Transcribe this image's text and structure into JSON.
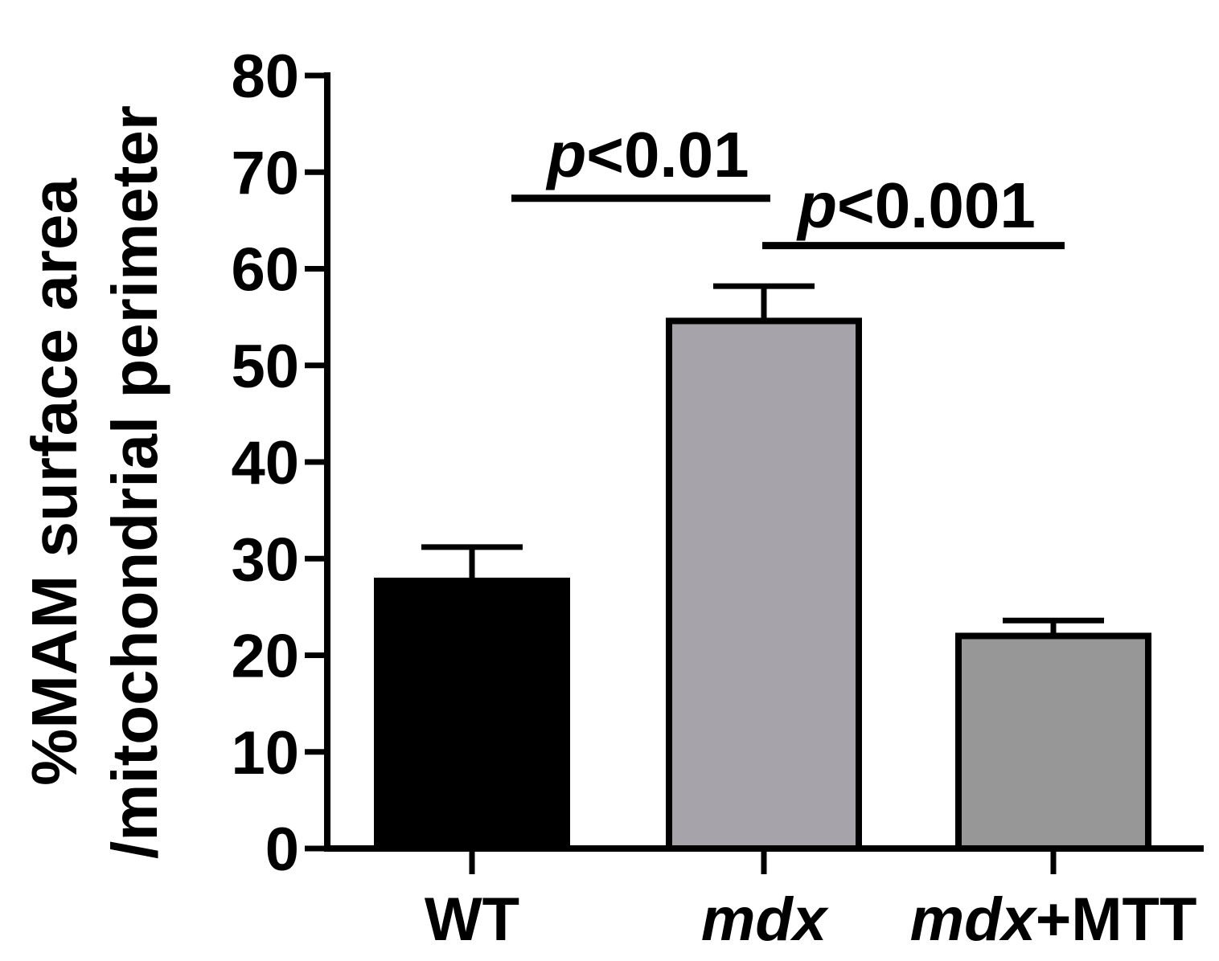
{
  "chart_data": {
    "type": "bar",
    "categories": [
      "WT",
      "mdx",
      "mdx+MTT"
    ],
    "category_labels": [
      {
        "italic": "",
        "plain": "WT"
      },
      {
        "italic": "mdx",
        "plain": ""
      },
      {
        "italic": "mdx",
        "plain": "+MTT"
      }
    ],
    "values": [
      27.7,
      54.6,
      22.0
    ],
    "errors": [
      3.5,
      3.6,
      1.6
    ],
    "colors": [
      "#000000",
      "#a6a4aa",
      "#979797"
    ],
    "ylabel_line1": "%MAM surface area",
    "ylabel_line2": "/mitochondrial perimeter",
    "ylim": [
      0,
      80
    ],
    "yticks": [
      "0",
      "10",
      "20",
      "30",
      "40",
      "50",
      "60",
      "70",
      "80"
    ],
    "annotations": [
      {
        "from": 0,
        "to": 1,
        "y": 67.3,
        "p_italic": "p",
        "text": "<0.01"
      },
      {
        "from": 1,
        "to": 2,
        "y": 62.4,
        "p_italic": "p",
        "text": "<0.001"
      }
    ]
  }
}
